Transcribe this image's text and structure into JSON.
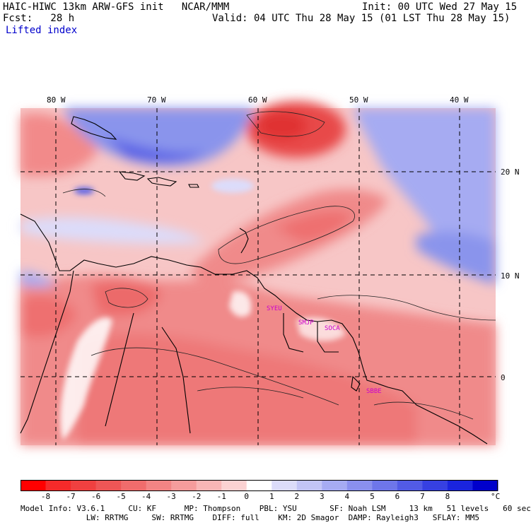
{
  "header": {
    "model_title": "HAIC-HIWC 13km ARW-GFS init   NCAR/MMM",
    "init_time": "Init: 00 UTC Wed 27 May 15",
    "forecast_hour": "Fcst:   28 h",
    "valid_time": "Valid: 04 UTC Thu 28 May 15 (01 LST Thu 28 May 15)",
    "field_name": "Lifted index"
  },
  "map": {
    "longitude_labels": [
      "80 W",
      "70 W",
      "60 W",
      "50 W",
      "40 W"
    ],
    "latitude_labels": [
      "20 N",
      "10 N",
      "0"
    ],
    "stations": [
      "SYEU",
      "SMJP",
      "SOCA",
      "SBBE"
    ],
    "colors": {
      "negative_strong": "#e83a3a",
      "negative_mid": "#f08080",
      "negative_weak": "#f7c6c6",
      "neutral": "#ffffff",
      "positive_weak": "#c8ccf4",
      "positive_mid": "#8a94ec",
      "positive_strong": "#4a55e0"
    }
  },
  "colorbar": {
    "levels": [
      "-8",
      "-7",
      "-6",
      "-5",
      "-4",
      "-3",
      "-2",
      "-1",
      "0",
      "1",
      "2",
      "3",
      "4",
      "5",
      "6",
      "7",
      "8"
    ],
    "unit": "°C",
    "colors": [
      "#ff0000",
      "#f52a2a",
      "#f04040",
      "#ee5656",
      "#f06c6c",
      "#f28484",
      "#f59c9c",
      "#f8b6b6",
      "#fbd2d2",
      "#ffffff",
      "#dcdcfa",
      "#c2c4f6",
      "#a6abf2",
      "#8a90ee",
      "#6e76ea",
      "#525be6",
      "#3640e2",
      "#1a24de",
      "#0000cc"
    ]
  },
  "footer": {
    "line1": "Model Info: V3.6.1     CU: KF      MP: Thompson    PBL: YSU       SF: Noah LSM     13 km   51 levels   60 sec",
    "line2": "              LW: RRTMG     SW: RRTMG    DIFF: full    KM: 2D Smagor  DAMP: Rayleigh3   SFLAY: MM5"
  }
}
